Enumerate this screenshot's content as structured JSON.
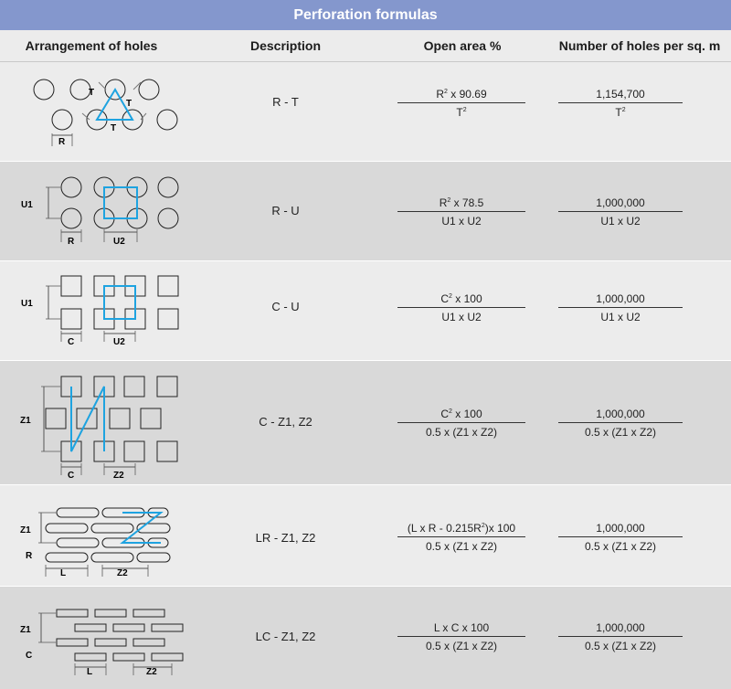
{
  "title": "Perforation formulas",
  "headers": {
    "arrangement": "Arrangement of holes",
    "description": "Description",
    "open_area": "Open area %",
    "holes": "Number of holes per sq. m"
  },
  "rows": [
    {
      "description": "R - T",
      "open_area": {
        "num_base": "R",
        "num_exp": "2",
        "num_tail": " x 90.69",
        "den_base": "T",
        "den_exp": "2"
      },
      "holes": {
        "num": "1,154,700",
        "den_base": "T",
        "den_exp": "2"
      },
      "diagram_labels": {
        "a": "T",
        "b": "T",
        "c": "T",
        "d": "R"
      }
    },
    {
      "description": "R - U",
      "open_area": {
        "num_base": "R",
        "num_exp": "2",
        "num_tail": " x 78.5",
        "den": "U1 x U2"
      },
      "holes": {
        "num": "1,000,000",
        "den": "U1 x U2"
      },
      "diagram_labels": {
        "a": "U1",
        "b": "R",
        "c": "U2"
      }
    },
    {
      "description": "C - U",
      "open_area": {
        "num_base": "C",
        "num_exp": "2",
        "num_tail": " x 100",
        "den": "U1 x U2"
      },
      "holes": {
        "num": "1,000,000",
        "den": "U1 x U2"
      },
      "diagram_labels": {
        "a": "U1",
        "b": "C",
        "c": "U2"
      }
    },
    {
      "description": "C - Z1, Z2",
      "open_area": {
        "num_base": "C",
        "num_exp": "2",
        "num_tail": " x 100",
        "den": "0.5 x (Z1 x Z2)"
      },
      "holes": {
        "num": "1,000,000",
        "den": "0.5 x (Z1 x Z2)"
      },
      "diagram_labels": {
        "a": "Z1",
        "b": "C",
        "c": "Z2"
      }
    },
    {
      "description": "LR - Z1, Z2",
      "open_area": {
        "num_base": "(L x R - 0.215R",
        "num_exp": "2",
        "num_tail": ")x 100",
        "den": "0.5 x (Z1 x Z2)"
      },
      "holes": {
        "num": "1,000,000",
        "den": "0.5 x (Z1 x Z2)"
      },
      "diagram_labels": {
        "a": "Z1",
        "b": "R",
        "c": "L",
        "d": "Z2"
      }
    },
    {
      "description": "LC - Z1, Z2",
      "open_area": {
        "num": "L x C x 100",
        "den": "0.5 x (Z1 x Z2)"
      },
      "holes": {
        "num": "1,000,000",
        "den": "0.5 x (Z1 x Z2)"
      },
      "diagram_labels": {
        "a": "Z1",
        "b": "C",
        "c": "L",
        "d": "Z2"
      }
    }
  ],
  "colors": {
    "title_bg": "#8497cd",
    "accent": "#1ea3e0"
  }
}
